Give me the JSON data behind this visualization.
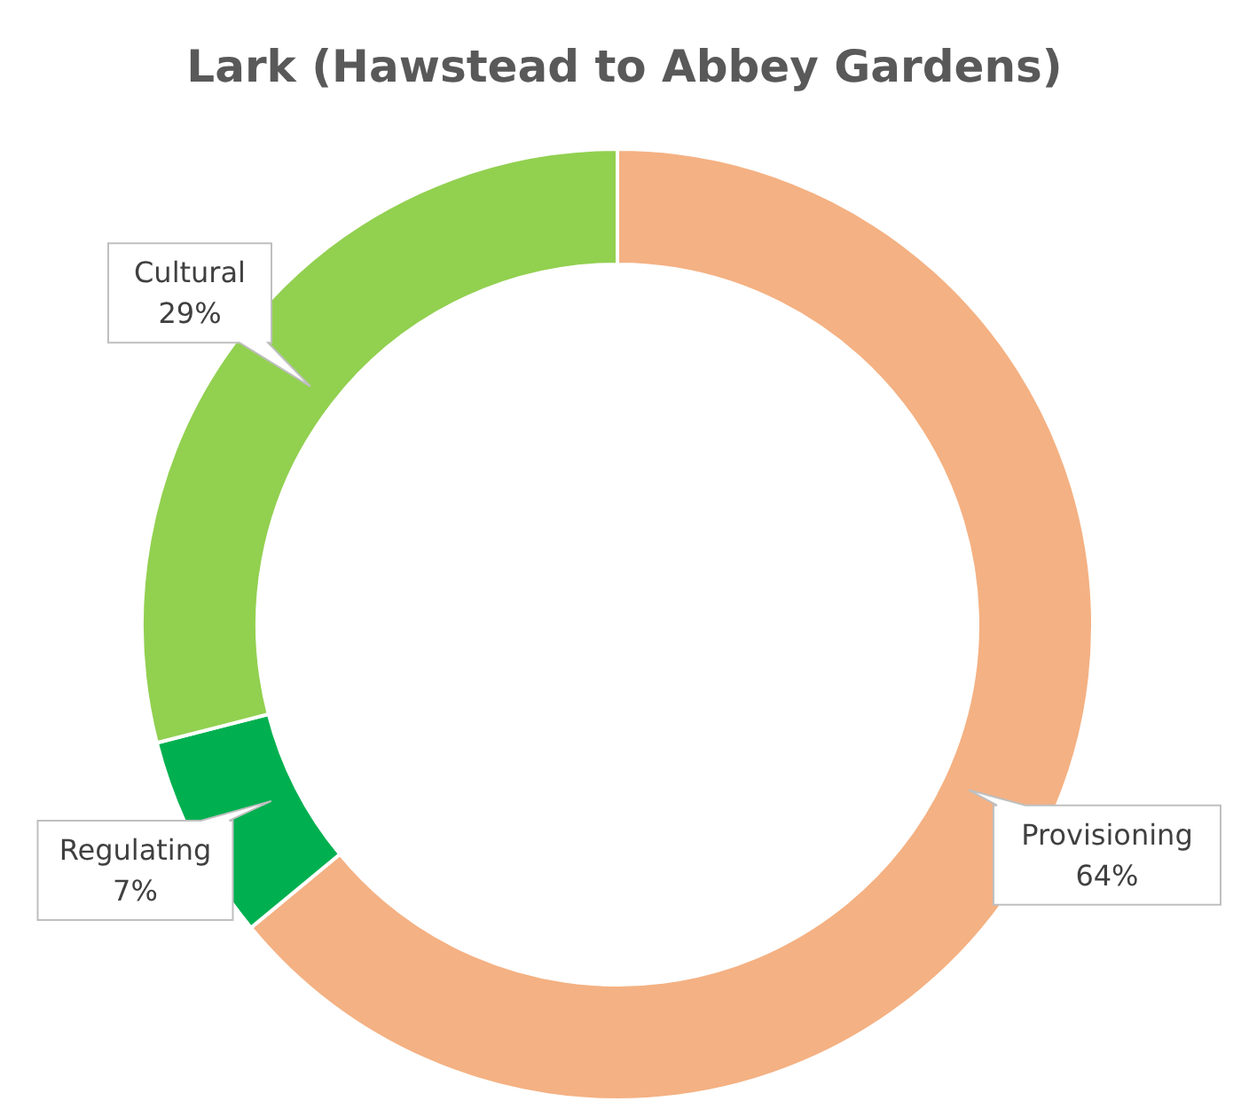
{
  "chart_data": {
    "type": "donut",
    "title": "Lark (Hawstead to Abbey Gardens)",
    "categories": [
      "Provisioning",
      "Regulating",
      "Cultural"
    ],
    "values": [
      64,
      7,
      29
    ],
    "colors": [
      "#f4b183",
      "#00b050",
      "#92d050"
    ],
    "value_labels": [
      "64%",
      "7%",
      "29%"
    ]
  }
}
